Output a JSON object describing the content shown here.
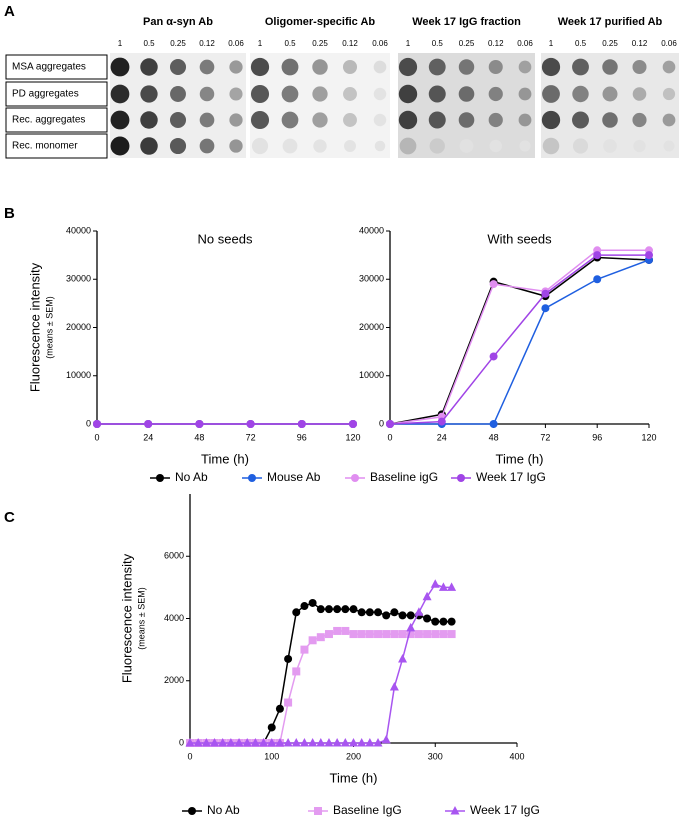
{
  "panel_labels": [
    "A",
    "B",
    "C"
  ],
  "blot": {
    "row_labels": [
      "MSA aggregates",
      "PD aggregates",
      "Rec. aggregates",
      "Rec. monomer"
    ],
    "columns": [
      {
        "title": "Pan α-syn Ab",
        "dilutions": [
          "1",
          "0.5",
          "0.25",
          "0.12",
          "0.06"
        ]
      },
      {
        "title": "Oligomer-specific Ab",
        "dilutions": [
          "1",
          "0.5",
          "0.25",
          "0.12",
          "0.06"
        ]
      },
      {
        "title": "Week 17 IgG fraction",
        "dilutions": [
          "1",
          "0.5",
          "0.25",
          "0.12",
          "0.06"
        ]
      },
      {
        "title": "Week 17 purified Ab",
        "dilutions": [
          "1",
          "0.5",
          "0.25",
          "0.12",
          "0.06"
        ]
      }
    ]
  },
  "chart_data": [
    {
      "type": "line",
      "title": "No seeds",
      "xlabel": "Time (h)",
      "ylabel": "Fluorescence intensity",
      "ylabel_note": "(means ± SEM)",
      "x": [
        0,
        24,
        48,
        72,
        96,
        120
      ],
      "xlim": [
        0,
        120
      ],
      "xticks": [
        0,
        24,
        48,
        72,
        96,
        120
      ],
      "ylim": [
        0,
        40000
      ],
      "yticks": [
        0,
        10000,
        20000,
        30000,
        40000
      ],
      "series": [
        {
          "name": "No Ab",
          "color": "#000000",
          "marker": "circle",
          "values": [
            0,
            0,
            0,
            0,
            0,
            0
          ]
        },
        {
          "name": "Mouse Ab",
          "color": "#1f5fe0",
          "marker": "circle",
          "values": [
            0,
            0,
            0,
            0,
            0,
            0
          ]
        },
        {
          "name": "Baseline igG",
          "color": "#e08ef0",
          "marker": "circle",
          "values": [
            0,
            0,
            0,
            0,
            0,
            0
          ]
        },
        {
          "name": "Week 17 IgG",
          "color": "#a044e6",
          "marker": "circle",
          "values": [
            0,
            0,
            0,
            0,
            0,
            0
          ]
        }
      ]
    },
    {
      "type": "line",
      "title": "With seeds",
      "xlabel": "Time (h)",
      "x": [
        0,
        24,
        48,
        72,
        96,
        120
      ],
      "xlim": [
        0,
        120
      ],
      "xticks": [
        0,
        24,
        48,
        72,
        96,
        120
      ],
      "ylim": [
        0,
        40000
      ],
      "yticks": [
        0,
        10000,
        20000,
        30000,
        40000
      ],
      "series": [
        {
          "name": "No Ab",
          "color": "#000000",
          "marker": "circle",
          "values": [
            0,
            2000,
            29500,
            26500,
            34500,
            34000
          ]
        },
        {
          "name": "Mouse Ab",
          "color": "#1f5fe0",
          "marker": "circle",
          "values": [
            0,
            0,
            0,
            24000,
            30000,
            34000
          ]
        },
        {
          "name": "Baseline igG",
          "color": "#e08ef0",
          "marker": "circle",
          "values": [
            0,
            1500,
            29000,
            27500,
            36000,
            36000
          ]
        },
        {
          "name": "Week 17 IgG",
          "color": "#a044e6",
          "marker": "circle",
          "values": [
            0,
            500,
            14000,
            27000,
            35000,
            35000
          ]
        }
      ]
    },
    {
      "type": "line",
      "xlabel": "Time (h)",
      "ylabel": "Fluorescence intensity",
      "ylabel_note": "(means ± SEM)",
      "x": [
        0,
        10,
        20,
        30,
        40,
        50,
        60,
        70,
        80,
        90,
        100,
        110,
        120,
        130,
        140,
        150,
        160,
        170,
        180,
        190,
        200,
        210,
        220,
        230,
        240,
        250,
        260,
        270,
        280,
        290,
        300,
        310,
        320
      ],
      "xlim": [
        0,
        400
      ],
      "xticks": [
        0,
        100,
        200,
        300,
        400
      ],
      "ylim": [
        0,
        8000
      ],
      "yticks": [
        0,
        2000,
        4000,
        6000
      ],
      "series": [
        {
          "name": "No Ab",
          "color": "#000000",
          "marker": "circle",
          "values": [
            0,
            0,
            0,
            0,
            0,
            0,
            0,
            0,
            0,
            0,
            500,
            1100,
            2700,
            4200,
            4400,
            4500,
            4300,
            4300,
            4300,
            4300,
            4300,
            4200,
            4200,
            4200,
            4100,
            4200,
            4100,
            4100,
            4100,
            4000,
            3900,
            3900,
            3900
          ]
        },
        {
          "name": "Baseline IgG",
          "color": "#e39bf0",
          "marker": "square",
          "values": [
            0,
            0,
            0,
            0,
            0,
            0,
            0,
            0,
            0,
            0,
            0,
            0,
            1300,
            2300,
            3000,
            3300,
            3400,
            3500,
            3600,
            3600,
            3500,
            3500,
            3500,
            3500,
            3500,
            3500,
            3500,
            3500,
            3500,
            3500,
            3500,
            3500,
            3500
          ]
        },
        {
          "name": "Week 17 IgG",
          "color": "#a855f0",
          "marker": "triangle",
          "values": [
            0,
            0,
            0,
            0,
            0,
            0,
            0,
            0,
            0,
            0,
            0,
            0,
            0,
            0,
            0,
            0,
            0,
            0,
            0,
            0,
            0,
            0,
            0,
            0,
            100,
            1800,
            2700,
            3700,
            4200,
            4700,
            5100,
            5000,
            5000
          ]
        }
      ]
    }
  ]
}
